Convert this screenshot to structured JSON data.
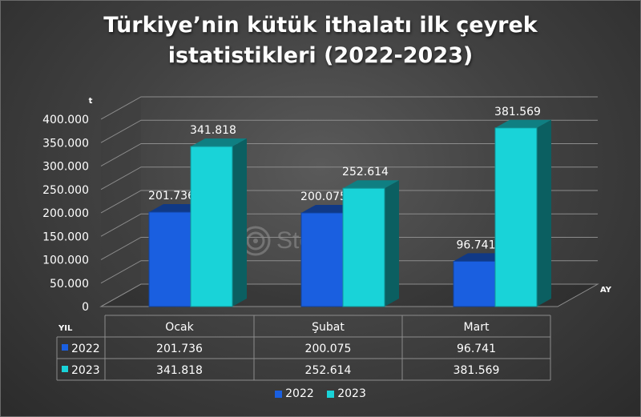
{
  "title_line1": "Türkiye’nin kütük ithalatı ilk çeyrek",
  "title_line2": "istatistikleri (2022-2023)",
  "watermark_text": "SteelRadar",
  "watermark_icon": "steelradar-logo-icon",
  "colors": {
    "series_2022": "#1a5fe0",
    "series_2023": "#19d3d8"
  },
  "chart_data": {
    "type": "bar",
    "title": "Türkiye’nin kütük ithalatı ilk çeyrek istatistikleri (2022-2023)",
    "ylabel": "t",
    "xlabel": "AY",
    "ylim": [
      0,
      400000
    ],
    "yticks": [
      0,
      50000,
      100000,
      150000,
      200000,
      250000,
      300000,
      350000,
      400000
    ],
    "ytick_labels": [
      "0",
      "50.000",
      "100.000",
      "150.000",
      "200.000",
      "250.000",
      "300.000",
      "350.000",
      "400.000"
    ],
    "categories": [
      "Ocak",
      "Şubat",
      "Mart"
    ],
    "series": [
      {
        "name": "2022",
        "values": [
          201736,
          200075,
          96741
        ],
        "labels": [
          "201.736",
          "200.075",
          "96.741"
        ]
      },
      {
        "name": "2023",
        "values": [
          341818,
          252614,
          381569
        ],
        "labels": [
          "341.818",
          "252.614",
          "381.569"
        ]
      }
    ],
    "table_header": "YIL",
    "grid": true,
    "legend": "bottom"
  }
}
